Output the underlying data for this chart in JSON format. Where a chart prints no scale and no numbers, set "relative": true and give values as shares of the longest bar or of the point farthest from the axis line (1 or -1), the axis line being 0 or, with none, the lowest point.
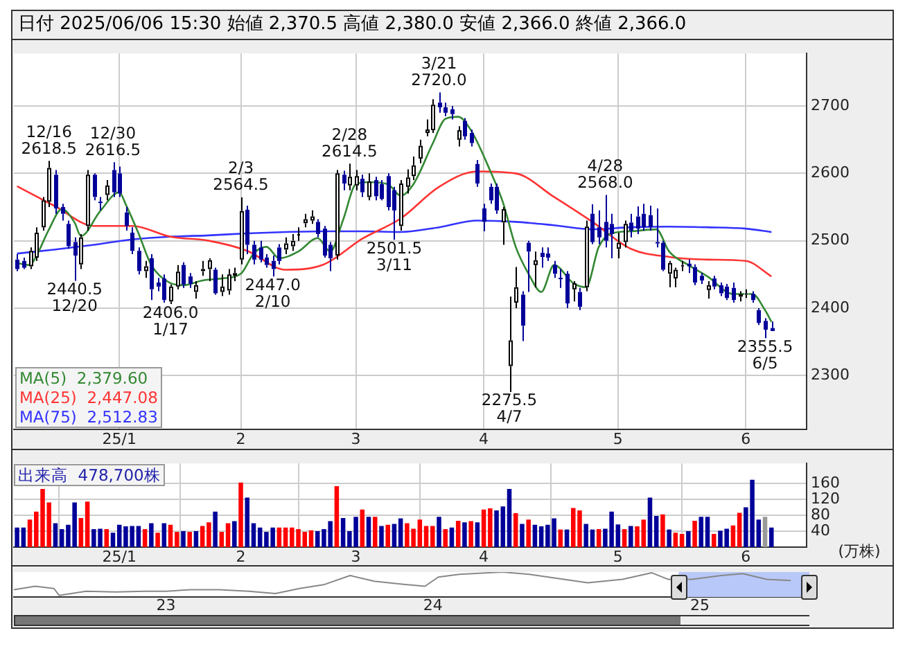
{
  "chart_data": [
    {
      "type": "candlestick",
      "title": "日付 2025/06/06 15:30 始値 2,370.5 高値 2,380.0 安値 2,366.0 終値 2,366.0",
      "categories": [
        null,
        null,
        null,
        null,
        null,
        null,
        null,
        null,
        null,
        null,
        null,
        null,
        null,
        null,
        null,
        null,
        "25/1",
        null,
        null,
        null,
        null,
        null,
        null,
        null,
        null,
        null,
        null,
        null,
        null,
        null,
        null,
        null,
        null,
        null,
        null,
        "2",
        null,
        null,
        null,
        null,
        null,
        null,
        null,
        null,
        null,
        null,
        null,
        null,
        null,
        null,
        null,
        null,
        null,
        "3",
        null,
        null,
        null,
        null,
        null,
        null,
        null,
        null,
        null,
        null,
        null,
        null,
        null,
        null,
        null,
        null,
        null,
        null,
        null,
        "4",
        null,
        null,
        null,
        null,
        null,
        null,
        null,
        null,
        null,
        null,
        null,
        null,
        null,
        null,
        null,
        null,
        null,
        null,
        null,
        null,
        "5",
        null,
        null,
        null,
        null,
        null,
        null,
        null,
        null,
        null,
        null,
        null,
        null,
        null,
        null,
        null,
        null,
        null,
        null,
        null,
        "6",
        null,
        null,
        null,
        null
      ],
      "ohlc": [
        [
          2472,
          2480,
          2455,
          2458
        ],
        [
          2470,
          2475,
          2458,
          2460
        ],
        [
          2462,
          2490,
          2458,
          2485
        ],
        [
          2475,
          2520,
          2470,
          2512
        ],
        [
          2520,
          2565,
          2515,
          2560
        ],
        [
          2558,
          2618.5,
          2550,
          2608
        ],
        [
          2598,
          2605,
          2540,
          2548
        ],
        [
          2550,
          2555,
          2530,
          2540
        ],
        [
          2525,
          2530,
          2488,
          2492
        ],
        [
          2498,
          2505,
          2440.5,
          2478
        ],
        [
          2465,
          2510,
          2458,
          2505
        ],
        [
          2522,
          2605,
          2515,
          2598
        ],
        [
          2598,
          2600,
          2560,
          2565
        ],
        [
          2558,
          2565,
          2545,
          2556
        ],
        [
          2568,
          2590,
          2560,
          2582
        ],
        [
          2605,
          2616.5,
          2565,
          2572
        ],
        [
          2600,
          2610,
          2565,
          2570
        ],
        [
          2542,
          2550,
          2515,
          2522
        ],
        [
          2512,
          2520,
          2480,
          2485
        ],
        [
          2485,
          2490,
          2450,
          2455
        ],
        [
          2455,
          2470,
          2445,
          2462
        ],
        [
          2474,
          2480,
          2412,
          2428
        ],
        [
          2438,
          2445,
          2425,
          2432
        ],
        [
          2444,
          2450,
          2408,
          2412
        ],
        [
          2410,
          2435,
          2406,
          2432
        ],
        [
          2432,
          2464,
          2428,
          2454
        ],
        [
          2464,
          2468,
          2430,
          2435
        ],
        [
          2447,
          2452,
          2430,
          2436
        ],
        [
          2424,
          2440,
          2414,
          2434
        ],
        [
          2455,
          2470,
          2448,
          2458
        ],
        [
          2458,
          2474,
          2440,
          2471
        ],
        [
          2457,
          2460,
          2420,
          2422
        ],
        [
          2424,
          2450,
          2418,
          2432
        ],
        [
          2426,
          2458,
          2420,
          2450
        ],
        [
          2448,
          2460,
          2440,
          2452
        ],
        [
          2472,
          2564.5,
          2465,
          2544
        ],
        [
          2546,
          2552,
          2480,
          2494
        ],
        [
          2494,
          2500,
          2465,
          2472
        ],
        [
          2490,
          2500,
          2468,
          2472
        ],
        [
          2475,
          2480,
          2460,
          2464
        ],
        [
          2470,
          2478,
          2447,
          2458
        ],
        [
          2490,
          2495,
          2465,
          2470
        ],
        [
          2487,
          2505,
          2480,
          2496
        ],
        [
          2492,
          2510,
          2485,
          2500
        ],
        [
          2508,
          2520,
          2500,
          2510
        ],
        [
          2526,
          2540,
          2520,
          2532
        ],
        [
          2530,
          2545,
          2525,
          2536
        ],
        [
          2528,
          2532,
          2505,
          2510
        ],
        [
          2518,
          2522,
          2475,
          2478
        ],
        [
          2494,
          2498,
          2455,
          2474
        ],
        [
          2478,
          2605,
          2472,
          2600
        ],
        [
          2598,
          2604,
          2575,
          2585
        ],
        [
          2582,
          2614.5,
          2575,
          2595
        ],
        [
          2582,
          2605,
          2575,
          2596
        ],
        [
          2592,
          2598,
          2565,
          2572
        ],
        [
          2565,
          2600,
          2560,
          2588
        ],
        [
          2590,
          2595,
          2560,
          2566
        ],
        [
          2584,
          2590,
          2560,
          2562
        ],
        [
          2596,
          2600,
          2545,
          2550
        ],
        [
          2575,
          2580,
          2501.5,
          2545
        ],
        [
          2522,
          2590,
          2515,
          2585
        ],
        [
          2580,
          2606,
          2570,
          2594
        ],
        [
          2596,
          2625,
          2590,
          2612
        ],
        [
          2622,
          2650,
          2615,
          2641
        ],
        [
          2660,
          2680,
          2655,
          2665
        ],
        [
          2664,
          2710,
          2660,
          2702
        ],
        [
          2705,
          2720,
          2690,
          2698
        ],
        [
          2698,
          2705,
          2685,
          2690
        ],
        [
          2695,
          2700,
          2680,
          2688
        ],
        [
          2650,
          2670,
          2640,
          2664
        ],
        [
          2678,
          2682,
          2650,
          2655
        ],
        [
          2660,
          2665,
          2640,
          2645
        ],
        [
          2614,
          2620,
          2580,
          2585
        ],
        [
          2548,
          2555,
          2514,
          2528
        ],
        [
          2580,
          2585,
          2555,
          2560
        ],
        [
          2580,
          2585,
          2540,
          2545
        ],
        [
          2527,
          2550,
          2494,
          2547
        ],
        [
          2314,
          2417,
          2275.5,
          2352
        ],
        [
          2408,
          2461,
          2400,
          2431
        ],
        [
          2420,
          2425,
          2351,
          2374
        ],
        [
          2497,
          2500,
          2424,
          2484
        ],
        [
          2464,
          2484,
          2431,
          2471
        ],
        [
          2482,
          2490,
          2460,
          2476
        ],
        [
          2481,
          2490,
          2470,
          2475
        ],
        [
          2464,
          2470,
          2445,
          2451
        ],
        [
          2445,
          2458,
          2430,
          2444
        ],
        [
          2451,
          2455,
          2400,
          2407
        ],
        [
          2428,
          2440,
          2410,
          2437
        ],
        [
          2424,
          2430,
          2397,
          2402
        ],
        [
          2431,
          2530,
          2425,
          2521
        ],
        [
          2540,
          2554,
          2495,
          2498
        ],
        [
          2520,
          2545,
          2495,
          2505
        ],
        [
          2528,
          2568,
          2490,
          2500
        ],
        [
          2525,
          2540,
          2474,
          2510
        ],
        [
          2488,
          2512,
          2474,
          2497
        ],
        [
          2498,
          2530,
          2490,
          2525
        ],
        [
          2527,
          2540,
          2505,
          2515
        ],
        [
          2536,
          2551,
          2510,
          2518
        ],
        [
          2540,
          2555,
          2515,
          2520
        ],
        [
          2538,
          2552,
          2515,
          2520
        ],
        [
          2498,
          2548,
          2490,
          2496
        ],
        [
          2497,
          2500,
          2455,
          2457
        ],
        [
          2451,
          2470,
          2431,
          2467
        ],
        [
          2444,
          2460,
          2431,
          2457
        ],
        [
          2462,
          2470,
          2455,
          2464
        ],
        [
          2466,
          2472,
          2452,
          2462
        ],
        [
          2461,
          2465,
          2434,
          2438
        ],
        [
          2448,
          2452,
          2436,
          2441
        ],
        [
          2427,
          2440,
          2414,
          2434
        ],
        [
          2444,
          2448,
          2428,
          2432
        ],
        [
          2434,
          2438,
          2418,
          2422
        ],
        [
          2432,
          2436,
          2412,
          2415
        ],
        [
          2430,
          2438,
          2408,
          2412
        ],
        [
          2417,
          2425,
          2410,
          2421
        ],
        [
          2420,
          2428,
          2415,
          2422
        ],
        [
          2421,
          2425,
          2408,
          2412
        ],
        [
          2397,
          2400,
          2375,
          2378
        ],
        [
          2381,
          2385,
          2355.5,
          2368
        ],
        [
          2370.5,
          2380,
          2366,
          2366
        ]
      ],
      "colors": [
        "#000099",
        "#000099",
        "#ffffff",
        "#ffffff",
        "#ffffff",
        "#ffffff",
        "#000099",
        "#000099",
        "#000099",
        "#000099",
        "#ffffff",
        "#ffffff",
        "#000099",
        "#000099",
        "#ffffff",
        "#000099",
        "#000099",
        "#000099",
        "#000099",
        "#000099",
        "#ffffff",
        "#000099",
        "#000099",
        "#000099",
        "#ffffff",
        "#ffffff",
        "#000099",
        "#000099",
        "#ffffff",
        "#ffffff",
        "#ffffff",
        "#000099",
        "#ffffff",
        "#ffffff",
        "#ffffff",
        "#ffffff",
        "#000099",
        "#000099",
        "#000099",
        "#000099",
        "#000099",
        "#000099",
        "#ffffff",
        "#ffffff",
        "#ffffff",
        "#ffffff",
        "#ffffff",
        "#000099",
        "#000099",
        "#000099",
        "#ffffff",
        "#000099",
        "#ffffff",
        "#ffffff",
        "#000099",
        "#ffffff",
        "#000099",
        "#000099",
        "#000099",
        "#000099",
        "#ffffff",
        "#ffffff",
        "#ffffff",
        "#ffffff",
        "#ffffff",
        "#ffffff",
        "#000099",
        "#000099",
        "#000099",
        "#ffffff",
        "#000099",
        "#000099",
        "#000099",
        "#000099",
        "#000099",
        "#000099",
        "#ffffff",
        "#ffffff",
        "#ffffff",
        "#000099",
        "#000099",
        "#ffffff",
        "#000099",
        "#000099",
        "#000099",
        "#000099",
        "#000099",
        "#ffffff",
        "#000099",
        "#ffffff",
        "#000099",
        "#000099",
        "#000099",
        "#000099",
        "#ffffff",
        "#ffffff",
        "#000099",
        "#000099",
        "#000099",
        "#000099",
        "#000099",
        "#000099",
        "#ffffff",
        "#ffffff",
        "#ffffff",
        "#000099",
        "#000099",
        "#000099",
        "#ffffff",
        "#000099",
        "#000099",
        "#000099",
        "#000099",
        "#ffffff",
        "#ffffff",
        "#000099",
        "#000099",
        "#000099",
        "#000099"
      ],
      "series": [
        {
          "type": "line",
          "name": "MA(5)  2,379.60",
          "color": "#338833",
          "values": [
            2467,
            null,
            2464,
            2477,
            null,
            2517,
            null,
            2547,
            null,
            2527,
            2507,
            null,
            null,
            2544,
            null,
            null,
            2572,
            2554,
            null,
            2511,
            null,
            2464,
            null,
            null,
            2437,
            null,
            2434,
            null,
            null,
            2441,
            null,
            null,
            2444,
            null,
            null,
            2451,
            null,
            2481,
            null,
            2491,
            null,
            2474,
            null,
            null,
            2484,
            null,
            null,
            2504,
            null,
            2484,
            null,
            2531,
            null,
            2584,
            null,
            2587,
            null,
            null,
            2584,
            null,
            2567,
            null,
            2584,
            null,
            null,
            2644,
            null,
            2681,
            null,
            2684,
            null,
            2664,
            null,
            null,
            2604,
            null,
            2557,
            null,
            2491,
            null,
            2451,
            null,
            2424,
            null,
            2464,
            null,
            null,
            2437,
            null,
            2431,
            null,
            2491,
            null,
            2511,
            null,
            null,
            2514,
            null,
            null,
            null,
            2517,
            null,
            2484,
            null,
            null,
            2464,
            null,
            null,
            2447,
            null,
            null,
            null,
            2421,
            null,
            null,
            2421,
            null,
            2397,
            2379.6
          ]
        },
        {
          "type": "line",
          "name": "MA(25)  2,447.08",
          "color": "#ff3333",
          "values": [
            2581,
            null,
            null,
            null,
            null,
            null,
            2551,
            null,
            null,
            null,
            null,
            null,
            2522,
            null,
            null,
            null,
            null,
            null,
            2522,
            null,
            null,
            null,
            null,
            null,
            2506,
            null,
            null,
            null,
            null,
            null,
            2500,
            null,
            null,
            null,
            null,
            null,
            2485,
            null,
            null,
            null,
            null,
            null,
            2457,
            null,
            null,
            null,
            null,
            null,
            2465,
            null,
            null,
            null,
            null,
            null,
            2503,
            null,
            null,
            null,
            null,
            null,
            2533,
            null,
            null,
            null,
            null,
            null,
            2580,
            null,
            null,
            null,
            null,
            null,
            2603,
            null,
            null,
            null,
            null,
            null,
            2600,
            null,
            null,
            null,
            null,
            null,
            2565,
            null,
            null,
            null,
            null,
            null,
            2528,
            null,
            null,
            null,
            null,
            null,
            2488,
            null,
            null,
            null,
            null,
            null,
            2476,
            null,
            null,
            null,
            null,
            null,
            2472,
            null,
            null,
            null,
            null,
            null,
            2470,
            null,
            null,
            null,
            2447.08
          ]
        },
        {
          "type": "line",
          "name": "MA(75)  2,512.83",
          "color": "#3333ff",
          "values": [
            2481,
            null,
            null,
            null,
            null,
            null,
            2487,
            null,
            null,
            null,
            null,
            null,
            2494,
            null,
            null,
            null,
            null,
            null,
            2502,
            null,
            null,
            null,
            null,
            null,
            2506,
            null,
            null,
            null,
            null,
            null,
            2508,
            null,
            null,
            null,
            null,
            null,
            2511,
            null,
            null,
            null,
            null,
            null,
            2513,
            null,
            null,
            null,
            null,
            null,
            2514,
            null,
            null,
            null,
            null,
            null,
            2514,
            null,
            null,
            null,
            null,
            null,
            2513,
            null,
            null,
            null,
            null,
            null,
            2520,
            null,
            null,
            null,
            null,
            null,
            2530,
            null,
            null,
            null,
            null,
            null,
            2528,
            null,
            null,
            null,
            null,
            null,
            2523,
            null,
            null,
            null,
            null,
            null,
            2517,
            null,
            null,
            null,
            null,
            null,
            2520,
            null,
            null,
            null,
            null,
            null,
            2521,
            null,
            null,
            null,
            null,
            null,
            2520,
            null,
            null,
            null,
            null,
            null,
            2518,
            null,
            null,
            null,
            2512.83
          ]
        }
      ],
      "ylim": [
        2220,
        2778
      ],
      "yticks": [
        2300,
        2400,
        2500,
        2600,
        2700
      ],
      "grid": true,
      "legend": "bottom left",
      "annotations": [
        {
          "text": "12/16\n2618.5",
          "y": 2618.5
        },
        {
          "text": "12/30\n2616.5",
          "y": 2616.5
        },
        {
          "text": "2440.5\n12/20",
          "y": 2440.5
        },
        {
          "text": "2406.0\n1/17",
          "y": 2406
        },
        {
          "text": "2/3\n2564.5",
          "y": 2564.5
        },
        {
          "text": "2447.0\n2/10",
          "y": 2447
        },
        {
          "text": "2/28\n2614.5",
          "y": 2614.5
        },
        {
          "text": "2501.5\n3/11",
          "y": 2501.5
        },
        {
          "text": "3/21\n2720.0",
          "y": 2720
        },
        {
          "text": "2275.5\n4/7",
          "y": 2275.5
        },
        {
          "text": "4/28\n2568.0",
          "y": 2568
        },
        {
          "text": "2355.5\n6/5",
          "y": 2355.5
        }
      ]
    },
    {
      "type": "bar",
      "title": "出来高  478,700株",
      "ylabel": "(万株)",
      "categories": [
        null,
        null,
        null,
        null,
        null,
        null,
        null,
        null,
        null,
        null,
        null,
        null,
        null,
        null,
        null,
        null,
        "25/1",
        null,
        null,
        null,
        null,
        null,
        null,
        null,
        null,
        null,
        null,
        null,
        null,
        null,
        null,
        null,
        null,
        null,
        null,
        "2",
        null,
        null,
        null,
        null,
        null,
        null,
        null,
        null,
        null,
        null,
        null,
        null,
        null,
        null,
        null,
        null,
        null,
        "3",
        null,
        null,
        null,
        null,
        null,
        null,
        null,
        null,
        null,
        null,
        null,
        null,
        null,
        null,
        null,
        null,
        null,
        null,
        null,
        "4",
        null,
        null,
        null,
        null,
        null,
        null,
        null,
        null,
        null,
        null,
        null,
        null,
        null,
        null,
        null,
        null,
        null,
        null,
        null,
        null,
        "5",
        null,
        null,
        null,
        null,
        null,
        null,
        null,
        null,
        null,
        null,
        null,
        null,
        null,
        null,
        null,
        null,
        null,
        null,
        null,
        "6",
        null,
        null,
        null,
        null
      ],
      "values": [
        48,
        48,
        68,
        88,
        145,
        111,
        59,
        44,
        55,
        111,
        72,
        113,
        44,
        45,
        44,
        35,
        55,
        51,
        52,
        52,
        44,
        59,
        35,
        59,
        55,
        37,
        39,
        37,
        39,
        52,
        61,
        88,
        37,
        59,
        64,
        161,
        123,
        59,
        48,
        37,
        48,
        48,
        48,
        48,
        44,
        37,
        41,
        39,
        44,
        64,
        152,
        72,
        39,
        75,
        93,
        75,
        75,
        52,
        55,
        57,
        71,
        59,
        45,
        68,
        52,
        52,
        75,
        44,
        48,
        65,
        61,
        64,
        61,
        93,
        96,
        91,
        101,
        145,
        84,
        57,
        68,
        55,
        51,
        55,
        71,
        43,
        43,
        97,
        91,
        57,
        43,
        44,
        45,
        88,
        56,
        44,
        52,
        51,
        68,
        123,
        77,
        81,
        43,
        35,
        32,
        39,
        65,
        75,
        75,
        32,
        40,
        45,
        53,
        85,
        99,
        168,
        68,
        75,
        47.87
      ],
      "colors": [
        "#000099",
        "#000099",
        "#ff0000",
        "#ff0000",
        "#ff0000",
        "#ff0000",
        "#000099",
        "#000099",
        "#000099",
        "#000099",
        "#ff0000",
        "#ff0000",
        "#000099",
        "#000099",
        "#ff0000",
        "#000099",
        "#000099",
        "#000099",
        "#000099",
        "#000099",
        "#ff0000",
        "#000099",
        "#ff0000",
        "#000099",
        "#ff0000",
        "#ff0000",
        "#000099",
        "#ff0000",
        "#000099",
        "#ff0000",
        "#ff0000",
        "#000099",
        "#ff0000",
        "#ff0000",
        "#000099",
        "#ff0000",
        "#000099",
        "#000099",
        "#000099",
        "#000099",
        "#000099",
        "#ff0000",
        "#ff0000",
        "#ff0000",
        "#ff0000",
        "#ff0000",
        "#ff0000",
        "#000099",
        "#000099",
        "#000099",
        "#ff0000",
        "#000099",
        "#000099",
        "#000099",
        "#ff0000",
        "#000099",
        "#ff0000",
        "#000099",
        "#ff0000",
        "#000099",
        "#000099",
        "#ff0000",
        "#ff0000",
        "#ff0000",
        "#ff0000",
        "#ff0000",
        "#000099",
        "#ff0000",
        "#000099",
        "#ff0000",
        "#000099",
        "#ff0000",
        "#000099",
        "#ff0000",
        "#ff0000",
        "#000099",
        "#000099",
        "#000099",
        "#ff0000",
        "#000099",
        "#ff0000",
        "#000099",
        "#000099",
        "#000099",
        "#000099",
        "#ff0000",
        "#000099",
        "#ff0000",
        "#ff0000",
        "#000099",
        "#000099",
        "#ff0000",
        "#000099",
        "#000099",
        "#000099",
        "#ff0000",
        "#000099",
        "#ff0000",
        "#ff0000",
        "#000099",
        "#000099",
        "#ff0000",
        "#000099",
        "#ff0000",
        "#ff0000",
        "#000099",
        "#ff0000",
        "#000099",
        "#000099",
        "#ff0000",
        "#000099",
        "#000099",
        "#ff0000",
        "#ff0000",
        "#000099",
        "#000099",
        "#000099",
        "#999999",
        "#000099"
      ],
      "ylim": [
        0,
        210
      ],
      "yticks": [
        40,
        80,
        120,
        160
      ],
      "grid": true
    },
    {
      "type": "line",
      "relative": true,
      "color": "#888888",
      "x": [
        2022.43,
        2022.51,
        2022.58,
        2022.6,
        2022.7,
        2022.81,
        2022.92,
        2023.0,
        2023.09,
        2023.2,
        2023.31,
        2023.41,
        2023.5,
        2023.59,
        2023.69,
        2023.78,
        2023.89,
        2023.97,
        2024.02,
        2024.1,
        2024.26,
        2024.36,
        2024.49,
        2024.58,
        2024.71,
        2024.82,
        2024.88,
        2024.97,
        2025.08,
        2025.16,
        2025.25,
        2025.34
      ],
      "values": [
        0.29,
        0.43,
        0.34,
        0.06,
        0.23,
        0.2,
        0.23,
        0.23,
        0.29,
        0.29,
        0.23,
        0.14,
        0.34,
        0.49,
        0.86,
        0.63,
        0.51,
        0.43,
        0.8,
        0.91,
        1,
        0.91,
        0.71,
        0.57,
        0.71,
        0.97,
        0.71,
        0.71,
        0.86,
        0.94,
        0.71,
        0.66
      ],
      "xlim": [
        2022.43,
        2025.41
      ],
      "xticks": [
        {
          "value": 2023,
          "label": "23"
        },
        {
          "value": 2024,
          "label": "24"
        },
        {
          "value": 2025,
          "label": "25"
        }
      ],
      "bands": [
        {
          "axis": "x",
          "from": 2024.92,
          "to": 2025.41,
          "color": "#b8c8f8"
        }
      ]
    }
  ]
}
